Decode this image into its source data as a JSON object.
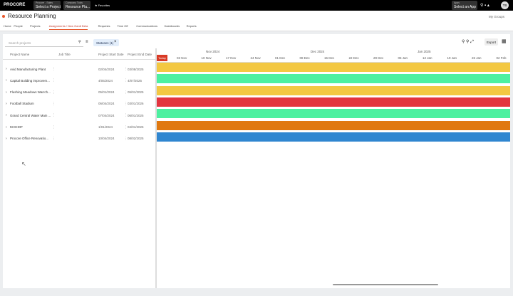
{
  "topbar": {
    "logo": "PROCORE",
    "project_label": "Procore - Sales",
    "project_value": "Select a Project",
    "tools_label": "Company Tools",
    "tools_value": "Resource Pla...",
    "favorites": "Favorites",
    "apps_label": "Apps",
    "apps_value": "Select an App",
    "avatar": "TB"
  },
  "header": {
    "title": "Resource Planning",
    "groups": "My Groups"
  },
  "nav": [
    "Home",
    "People",
    "Projects",
    "Assignments / New Gantt Beta",
    "Requests",
    "Time Off",
    "Communications",
    "Dashboards",
    "Reports"
  ],
  "toolbar": {
    "search": "Search projects",
    "filter": "Statuses (1)",
    "export": "Export"
  },
  "table": {
    "columns": [
      "Project Name",
      "Job Title",
      "Project Start Date",
      "Project End Date"
    ],
    "rows": [
      {
        "name": "Avid Manufacturing Plant",
        "start": "02/04/2024",
        "end": "03/08/2025",
        "color": "#f3c842"
      },
      {
        "name": "Capital Building improvem...",
        "start": "4/05/2024",
        "end": "4/07/2025",
        "color": "#4cf0a0"
      },
      {
        "name": "Flushing Meadows Warrch...",
        "start": "05/01/2024",
        "end": "05/01/2025",
        "color": "#f3c842"
      },
      {
        "name": "Football Stadium",
        "start": "06/04/2024",
        "end": "03/01/2026",
        "color": "#e3343f"
      },
      {
        "name": "Grand Central Water Main ...",
        "start": "07/04/2024",
        "end": "06/01/2025",
        "color": "#4cf0a0"
      },
      {
        "name": "M-DHOF",
        "start": "1/01/2024",
        "end": "04/01/2025",
        "color": "#e07810"
      },
      {
        "name": "Procore Office Renovatio...",
        "start": "10/04/2024",
        "end": "08/02/2025",
        "color": "#2f86d0"
      }
    ]
  },
  "timeline": {
    "months": [
      "Nov 2024",
      "Dec 2024",
      "Jan 2025"
    ],
    "today": "Today",
    "weeks": [
      "03 Nov",
      "10 Nov",
      "17 Nov",
      "24 Nov",
      "01 Dec",
      "08 Dec",
      "15 Dec",
      "22 Dec",
      "29 Dec",
      "05 Jan",
      "12 Jan",
      "19 Jan",
      "26 Jan",
      "02 Feb"
    ]
  }
}
